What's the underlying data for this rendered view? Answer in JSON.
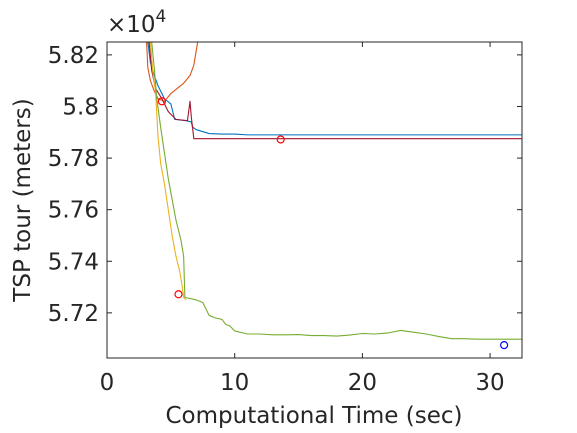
{
  "chart_data": {
    "type": "line",
    "title": "",
    "xlabel": "Computational Time (sec)",
    "ylabel": "TSP tour (meters)",
    "y_exponent_label": {
      "base": "×10",
      "exp": "4"
    },
    "xlim": [
      0,
      32.5
    ],
    "ylim": [
      57025,
      58250
    ],
    "x_ticks": [
      0,
      10,
      20,
      30
    ],
    "x_tick_labels": [
      "0",
      "10",
      "20",
      "30"
    ],
    "y_ticks": [
      57200,
      57400,
      57600,
      57800,
      58000,
      58200
    ],
    "y_tick_labels": [
      "5.72",
      "5.74",
      "5.76",
      "5.78",
      "5.8",
      "5.82"
    ],
    "grid": false,
    "box": true,
    "series": [
      {
        "color": "#0072BD",
        "points": [
          [
            3.2,
            58250
          ],
          [
            3.4,
            58170
          ],
          [
            3.7,
            58120
          ],
          [
            4.0,
            58080
          ],
          [
            4.5,
            58030
          ],
          [
            5.0,
            58010
          ],
          [
            5.3,
            57950
          ],
          [
            6.2,
            57945
          ],
          [
            6.6,
            57940
          ],
          [
            6.7,
            57920
          ],
          [
            7.0,
            57910
          ],
          [
            8.0,
            57895
          ],
          [
            9.0,
            57893
          ],
          [
            10.0,
            57893
          ],
          [
            11.0,
            57890
          ],
          [
            12.0,
            57890
          ],
          [
            13.0,
            57890
          ],
          [
            20.0,
            57890
          ],
          [
            25.0,
            57890
          ],
          [
            32.5,
            57890
          ]
        ]
      },
      {
        "color": "#D95319",
        "points": [
          [
            3.1,
            58250
          ],
          [
            3.2,
            58150
          ],
          [
            3.4,
            58100
          ],
          [
            3.7,
            58060
          ],
          [
            4.0,
            58030
          ],
          [
            4.5,
            58020
          ],
          [
            5.0,
            58050
          ],
          [
            6.0,
            58090
          ],
          [
            6.5,
            58120
          ],
          [
            6.8,
            58160
          ],
          [
            7.0,
            58220
          ],
          [
            7.1,
            58250
          ]
        ]
      },
      {
        "color": "#A2142F",
        "points": [
          [
            3.3,
            58250
          ],
          [
            3.5,
            58140
          ],
          [
            3.8,
            58070
          ],
          [
            4.3,
            58030
          ],
          [
            4.8,
            57980
          ],
          [
            5.4,
            57950
          ],
          [
            6.3,
            57945
          ],
          [
            6.5,
            58020
          ],
          [
            6.6,
            57960
          ],
          [
            6.8,
            57875
          ],
          [
            7.5,
            57875
          ],
          [
            10.0,
            57875
          ],
          [
            15.0,
            57875
          ],
          [
            20.0,
            57875
          ],
          [
            32.5,
            57875
          ]
        ]
      },
      {
        "color": "#EDB120",
        "points": [
          [
            3.4,
            58250
          ],
          [
            3.6,
            58130
          ],
          [
            3.8,
            58060
          ],
          [
            4.0,
            57880
          ],
          [
            4.2,
            57780
          ],
          [
            4.5,
            57700
          ],
          [
            4.8,
            57600
          ],
          [
            5.1,
            57500
          ],
          [
            5.4,
            57420
          ],
          [
            5.7,
            57360
          ],
          [
            5.9,
            57300
          ],
          [
            6.0,
            57260
          ],
          [
            6.2,
            57250
          ]
        ]
      },
      {
        "color": "#77AC30",
        "points": [
          [
            3.5,
            58250
          ],
          [
            3.7,
            58150
          ],
          [
            3.9,
            58030
          ],
          [
            4.2,
            57920
          ],
          [
            4.5,
            57820
          ],
          [
            4.8,
            57720
          ],
          [
            5.1,
            57640
          ],
          [
            5.4,
            57560
          ],
          [
            5.8,
            57480
          ],
          [
            6.0,
            57420
          ],
          [
            6.1,
            57260
          ],
          [
            7.0,
            57250
          ],
          [
            7.5,
            57240
          ],
          [
            8.0,
            57190
          ],
          [
            8.5,
            57180
          ],
          [
            9.0,
            57175
          ],
          [
            9.3,
            57155
          ],
          [
            9.6,
            57150
          ],
          [
            10.0,
            57130
          ],
          [
            11.0,
            57118
          ],
          [
            12.0,
            57118
          ],
          [
            13.0,
            57115
          ],
          [
            14.0,
            57115
          ],
          [
            15.0,
            57116
          ],
          [
            16.0,
            57112
          ],
          [
            17.0,
            57112
          ],
          [
            18.0,
            57110
          ],
          [
            19.0,
            57114
          ],
          [
            20.0,
            57120
          ],
          [
            21.0,
            57118
          ],
          [
            22.0,
            57122
          ],
          [
            23.0,
            57132
          ],
          [
            24.0,
            57125
          ],
          [
            25.0,
            57118
          ],
          [
            26.0,
            57108
          ],
          [
            27.0,
            57100
          ],
          [
            28.0,
            57100
          ],
          [
            29.0,
            57098
          ],
          [
            30.0,
            57098
          ],
          [
            31.0,
            57098
          ],
          [
            32.5,
            57098
          ]
        ]
      }
    ],
    "markers": [
      {
        "x": 4.3,
        "y": 58020,
        "color": "#FF0000",
        "shape": "circle"
      },
      {
        "x": 13.6,
        "y": 57872,
        "color": "#FF0000",
        "shape": "circle"
      },
      {
        "x": 5.6,
        "y": 57272,
        "color": "#FF0000",
        "shape": "circle"
      },
      {
        "x": 31.1,
        "y": 57075,
        "color": "#0000FF",
        "shape": "circle"
      }
    ]
  }
}
